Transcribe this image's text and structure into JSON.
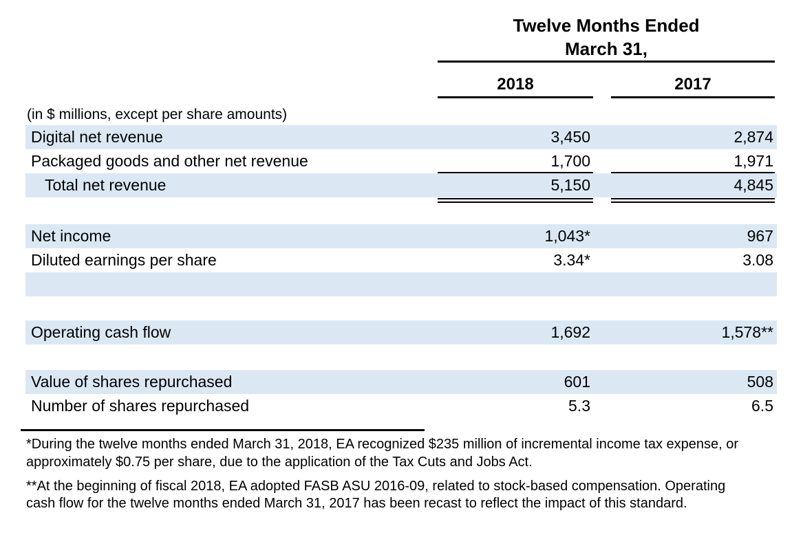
{
  "document": {
    "header": {
      "period_line1": "Twelve Months Ended",
      "period_line2": "March 31,",
      "col_2018": "2018",
      "col_2017": "2017"
    },
    "units_note": "(in $ millions, except per share amounts)",
    "rows": [
      {
        "label": "Digital net revenue",
        "y2018": "3,450",
        "y2017": "2,874"
      },
      {
        "label": "Packaged goods and other net revenue",
        "y2018": "1,700",
        "y2017": "1,971"
      },
      {
        "label": "Total net revenue",
        "y2018": "5,150",
        "y2017": "4,845"
      },
      {
        "label": "Net income",
        "y2018": "1,043*",
        "y2017": "967"
      },
      {
        "label": "Diluted earnings per share",
        "y2018": "3.34*",
        "y2017": "3.08"
      },
      {
        "label": "Operating cash flow",
        "y2018": "1,692",
        "y2017": "1,578**"
      },
      {
        "label": "Value of shares repurchased",
        "y2018": "601",
        "y2017": "508"
      },
      {
        "label": "Number of shares repurchased",
        "y2018": "5.3",
        "y2017": "6.5"
      }
    ],
    "footnotes": {
      "note1_line1": "*During the twelve months ended March 31, 2018, EA recognized $235 million of incremental income tax expense, or",
      "note1_line2": "approximately $0.75 per share, due to the application of the Tax Cuts and Jobs Act.",
      "note2_line1": "**At the beginning of fiscal 2018, EA adopted FASB ASU 2016-09, related to stock-based compensation. Operating",
      "note2_line2": "cash flow for the twelve months ended March 31, 2017 has been recast to reflect the impact of this standard."
    },
    "colors": {
      "row_shading": "#dbe8f4",
      "text": "#000000",
      "rule": "#000000"
    }
  }
}
